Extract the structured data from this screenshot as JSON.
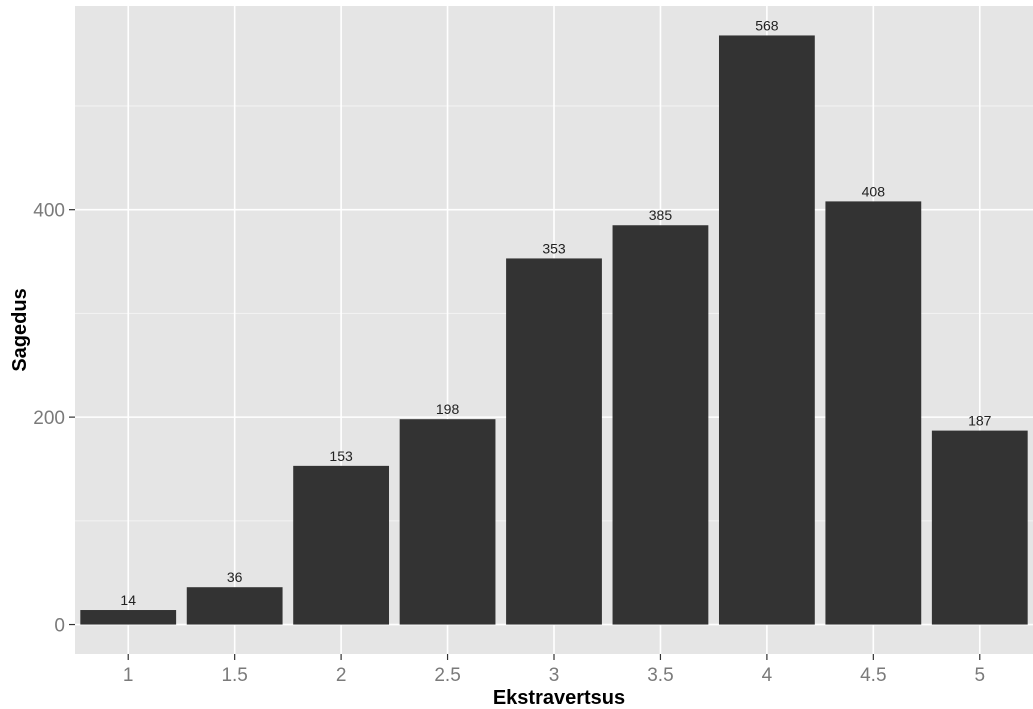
{
  "chart_data": {
    "type": "bar",
    "categories": [
      "1",
      "1.5",
      "2",
      "2.5",
      "3",
      "3.5",
      "4",
      "4.5",
      "5"
    ],
    "values": [
      14,
      36,
      153,
      198,
      353,
      385,
      568,
      408,
      187
    ],
    "data_labels": [
      "14",
      "36",
      "153",
      "198",
      "353",
      "385",
      "568",
      "408",
      "187"
    ],
    "title": "",
    "xlabel": "Ekstravertsus",
    "ylabel": "Sagedus",
    "ylim": [
      -28.4,
      596.4
    ],
    "yticks": [
      0,
      200,
      400
    ],
    "ytick_labels": [
      "0",
      "200",
      "400"
    ],
    "grid": true,
    "legend": "none",
    "colors": {
      "bar": "#333333",
      "panel_background": "#e5e5e5",
      "grid_major": "#ffffff",
      "grid_minor": "#f2f2f2"
    }
  }
}
